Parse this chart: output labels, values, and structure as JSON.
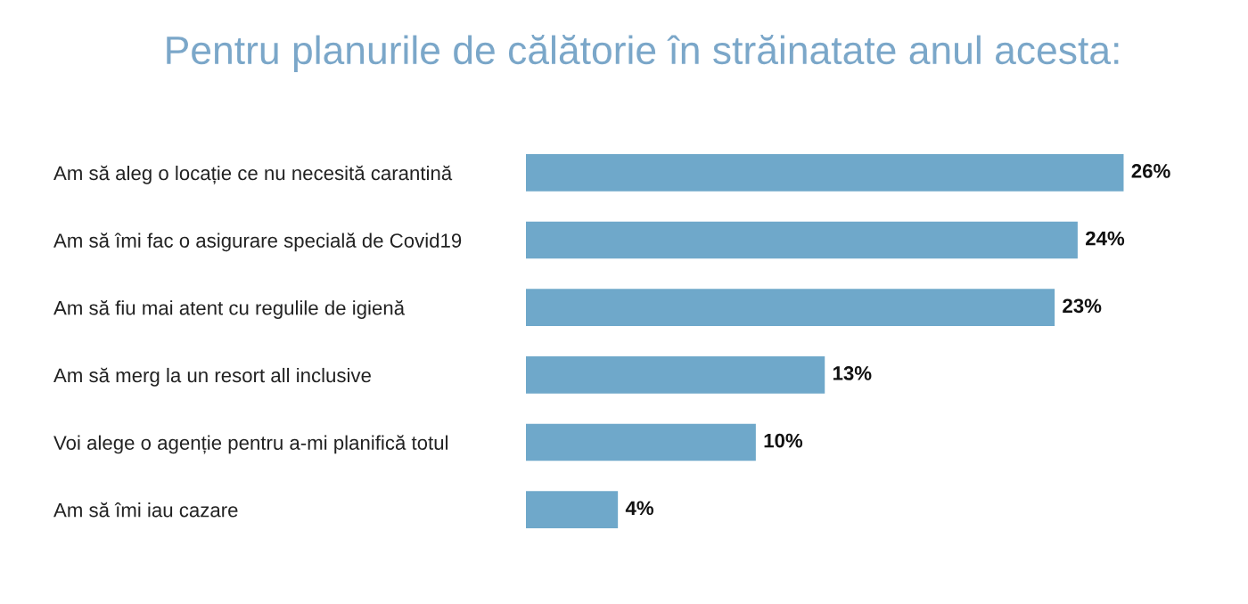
{
  "chart_data": {
    "type": "bar",
    "orientation": "horizontal",
    "title": "Pentru planurile de călătorie în străinatate anul acesta:",
    "categories": [
      "Am să aleg o locație ce nu necesită carantină",
      "Am să îmi fac o asigurare specială de Covid19",
      "Am să fiu mai atent cu regulile de igienă",
      "Am să merg la un resort all inclusive",
      "Voi alege o agenție pentru a-mi planifică totul",
      "Am să îmi iau cazare"
    ],
    "values": [
      26,
      24,
      23,
      13,
      10,
      4
    ],
    "value_labels": [
      "26%",
      "24%",
      "23%",
      "13%",
      "10%",
      "4%"
    ],
    "color": "#6fa8ca",
    "tick_labels": "y",
    "grid": false,
    "legend": false
  }
}
